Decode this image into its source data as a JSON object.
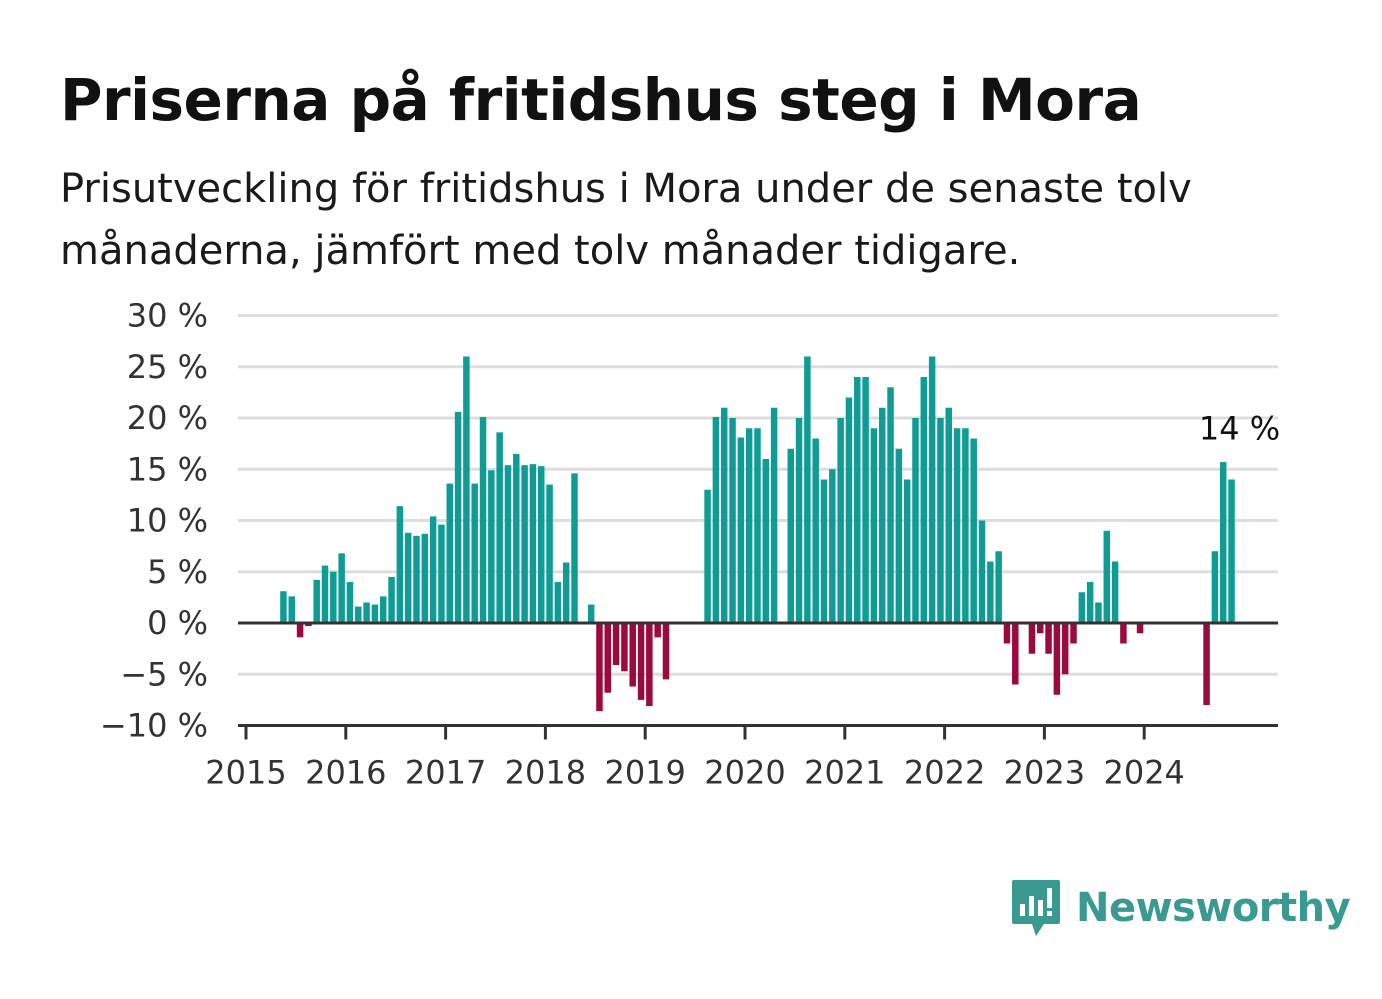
{
  "title": "Priserna på fritidshus steg i Mora",
  "subtitle": "Prisutveckling för fritidshus i Mora under de senaste tolv månaderna, jämfört med tolv månader tidigare.",
  "brand": {
    "name": "Newsworthy",
    "icon": "bar-chart-speech-bubble-icon",
    "color": "#3a9a92"
  },
  "colors": {
    "positive": "#0f9c94",
    "negative": "#9b0a3f",
    "grid": "#dddddd",
    "axis": "#333333"
  },
  "chart_data": {
    "type": "bar",
    "title": "Priserna på fritidshus steg i Mora",
    "xlabel": "",
    "ylabel": "",
    "ylim": [
      -10,
      30
    ],
    "yticks": [
      -10,
      -5,
      0,
      5,
      10,
      15,
      20,
      25,
      30
    ],
    "ytick_labels": [
      "−10 %",
      "−5 %",
      "0 %",
      "5 %",
      "10 %",
      "15 %",
      "20 %",
      "25 %",
      "30 %"
    ],
    "xticks": [
      "2015",
      "2016",
      "2017",
      "2018",
      "2019",
      "2020",
      "2021",
      "2022",
      "2023",
      "2024"
    ],
    "grid": true,
    "start": "2015-01",
    "values": [
      null,
      null,
      null,
      null,
      3.1,
      2.6,
      -1.4,
      -0.3,
      4.2,
      5.6,
      5.0,
      6.8,
      4.0,
      1.6,
      2.0,
      1.8,
      2.6,
      4.5,
      11.4,
      8.8,
      8.5,
      8.7,
      10.4,
      9.6,
      13.6,
      20.6,
      26.0,
      13.6,
      20.1,
      14.9,
      18.6,
      15.4,
      16.5,
      15.4,
      15.5,
      15.3,
      13.5,
      4.0,
      5.9,
      14.6,
      null,
      1.8,
      -8.6,
      -6.8,
      -4.1,
      -4.7,
      -6.2,
      -7.5,
      -8.1,
      -1.4,
      -5.5,
      null,
      null,
      null,
      null,
      13.0,
      20.1,
      21.0,
      20.0,
      18.1,
      19.0,
      19.0,
      16.0,
      21.0,
      null,
      17.0,
      20.0,
      26.0,
      18.0,
      14.0,
      15.0,
      20.0,
      22.0,
      24.0,
      24.0,
      19.0,
      21.0,
      23.0,
      17.0,
      14.0,
      20.0,
      24.0,
      26.0,
      20.0,
      21.0,
      19.0,
      19.0,
      18.0,
      10.0,
      6.0,
      7.0,
      -2.0,
      -6.0,
      null,
      -3.0,
      -1.0,
      -3.0,
      -7.0,
      -5.0,
      -2.0,
      3.0,
      4.0,
      2.0,
      9.0,
      6.0,
      -2.0,
      null,
      -1.0,
      null,
      null,
      null,
      null,
      null,
      null,
      null,
      -8.0,
      7.0,
      15.7,
      14.0
    ],
    "annotation": {
      "text": "14 %",
      "index": 118
    }
  }
}
